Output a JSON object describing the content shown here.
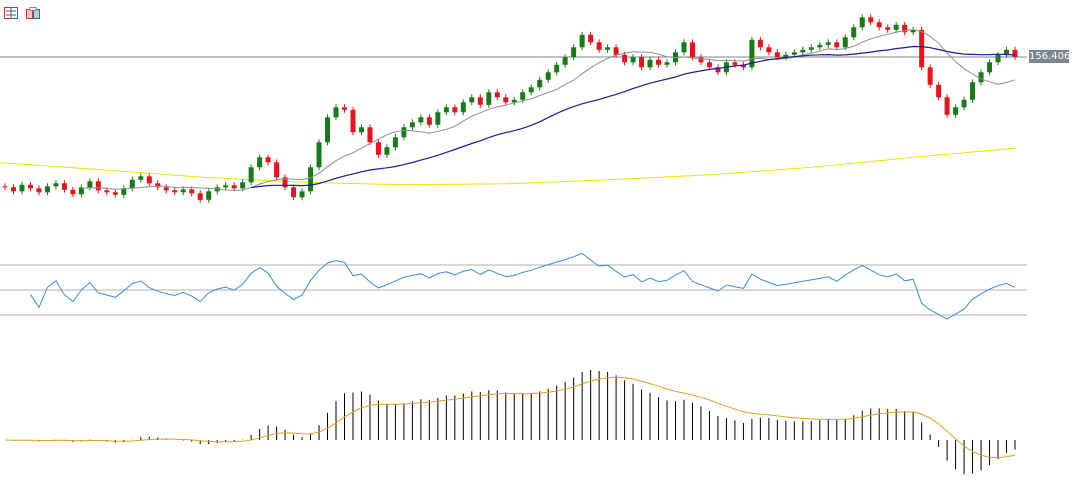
{
  "toolbar": {
    "icons": [
      "list-icon",
      "template-icon"
    ]
  },
  "chart_data": {
    "type": "candlestick",
    "current_price": "156.406",
    "colors": {
      "up": "#1a7a1a",
      "down": "#e8141c",
      "sma_fast": "#909090",
      "sma_slow": "#1c1c9c",
      "sma_long": "#f0e000",
      "rsi": "#3a8fd8",
      "macd_hist": "#000000",
      "macd_signal": "#e0a020",
      "grid": "#b0b0b0",
      "price_line": "#7a8790"
    },
    "wick": 0.06,
    "start_open": 153.82,
    "closes": [
      153.8,
      153.72,
      153.85,
      153.78,
      153.7,
      153.82,
      153.88,
      153.75,
      153.66,
      153.8,
      153.92,
      153.74,
      153.7,
      153.65,
      153.78,
      153.95,
      154.02,
      153.88,
      153.8,
      153.74,
      153.7,
      153.76,
      153.68,
      153.55,
      153.72,
      153.8,
      153.84,
      153.78,
      153.9,
      154.2,
      154.4,
      154.3,
      154.0,
      153.8,
      153.6,
      153.72,
      154.2,
      154.7,
      155.2,
      155.4,
      155.35,
      154.9,
      155.0,
      154.7,
      154.45,
      154.6,
      154.8,
      155.0,
      155.1,
      155.2,
      155.05,
      155.3,
      155.4,
      155.3,
      155.5,
      155.6,
      155.45,
      155.7,
      155.6,
      155.5,
      155.55,
      155.7,
      155.8,
      155.95,
      156.1,
      156.25,
      156.4,
      156.6,
      156.85,
      156.7,
      156.55,
      156.6,
      156.45,
      156.3,
      156.4,
      156.2,
      156.35,
      156.25,
      156.3,
      156.5,
      156.7,
      156.4,
      156.3,
      156.2,
      156.1,
      156.3,
      156.25,
      156.2,
      156.75,
      156.6,
      156.5,
      156.4,
      156.45,
      156.5,
      156.55,
      156.6,
      156.65,
      156.7,
      156.6,
      156.8,
      157.0,
      157.2,
      157.1,
      157.0,
      156.95,
      157.05,
      156.9,
      156.95,
      156.2,
      155.85,
      155.6,
      155.25,
      155.4,
      155.55,
      155.9,
      156.1,
      156.3,
      156.45,
      156.55,
      156.406
    ],
    "sma_fast_period": 10,
    "sma_slow_period": 30,
    "sma_long": [
      154.29,
      154.15,
      154.0,
      153.9,
      153.85,
      153.87,
      153.95,
      154.05,
      154.2,
      154.4,
      154.58
    ],
    "rsi_period": 14,
    "rsi_levels": [
      70,
      50,
      30
    ],
    "macd": [
      12,
      26,
      9
    ]
  }
}
